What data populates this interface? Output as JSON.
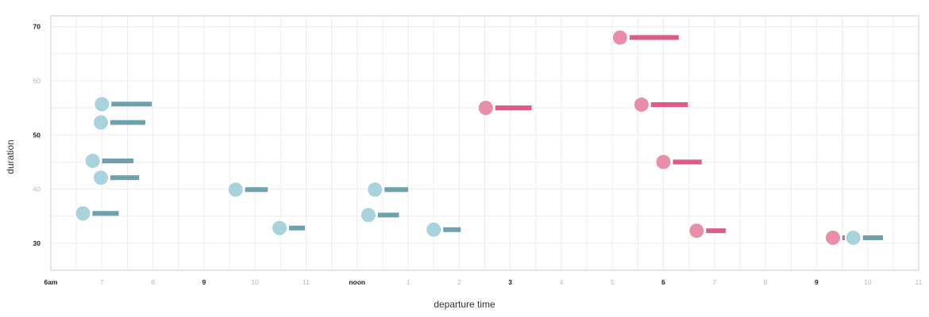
{
  "chart_data": {
    "type": "scatter",
    "xlabel": "departure time",
    "ylabel": "duration",
    "xlim": [
      6,
      23
    ],
    "ylim": [
      25,
      72
    ],
    "x_ticks": [
      {
        "value": 6,
        "label": "6am",
        "major": true
      },
      {
        "value": 7,
        "label": "7",
        "major": false
      },
      {
        "value": 8,
        "label": "8",
        "major": false
      },
      {
        "value": 9,
        "label": "9",
        "major": true
      },
      {
        "value": 10,
        "label": "10",
        "major": false
      },
      {
        "value": 11,
        "label": "11",
        "major": false
      },
      {
        "value": 12,
        "label": "noon",
        "major": true
      },
      {
        "value": 13,
        "label": "1",
        "major": false
      },
      {
        "value": 14,
        "label": "2",
        "major": false
      },
      {
        "value": 15,
        "label": "3",
        "major": true
      },
      {
        "value": 16,
        "label": "4",
        "major": false
      },
      {
        "value": 17,
        "label": "5",
        "major": false
      },
      {
        "value": 18,
        "label": "6",
        "major": true
      },
      {
        "value": 19,
        "label": "7",
        "major": false
      },
      {
        "value": 20,
        "label": "8",
        "major": false
      },
      {
        "value": 21,
        "label": "9",
        "major": true
      },
      {
        "value": 22,
        "label": "10",
        "major": false
      },
      {
        "value": 23,
        "label": "11",
        "major": false
      }
    ],
    "y_ticks": [
      {
        "value": 30,
        "label": "30",
        "major": true
      },
      {
        "value": 40,
        "label": "40",
        "major": false
      },
      {
        "value": 50,
        "label": "50",
        "major": true
      },
      {
        "value": 60,
        "label": "60",
        "major": false
      },
      {
        "value": 70,
        "label": "70",
        "major": true
      }
    ],
    "grid": true,
    "colors": {
      "blue_dot": "#a8d3dd",
      "blue_bar": "#6fa0ad",
      "pink_dot": "#e88ea8",
      "pink_bar": "#dc5d83"
    },
    "series": [
      {
        "color_key": "blue",
        "points": [
          {
            "x": 6.63,
            "y": 35.5,
            "arrival": 7.33
          },
          {
            "x": 6.82,
            "y": 45.2,
            "arrival": 7.62
          },
          {
            "x": 6.98,
            "y": 42.1,
            "arrival": 7.73
          },
          {
            "x": 6.98,
            "y": 52.3,
            "arrival": 7.85
          },
          {
            "x": 7.0,
            "y": 55.7,
            "arrival": 7.98
          },
          {
            "x": 9.62,
            "y": 39.9,
            "arrival": 10.25
          },
          {
            "x": 10.48,
            "y": 32.8,
            "arrival": 10.98
          },
          {
            "x": 12.22,
            "y": 35.2,
            "arrival": 12.82
          },
          {
            "x": 12.35,
            "y": 39.9,
            "arrival": 13.0
          },
          {
            "x": 13.5,
            "y": 32.5,
            "arrival": 14.03
          },
          {
            "x": 21.72,
            "y": 31.0,
            "arrival": 22.3
          }
        ]
      },
      {
        "color_key": "pink",
        "points": [
          {
            "x": 14.52,
            "y": 55.0,
            "arrival": 15.42
          },
          {
            "x": 17.15,
            "y": 68.0,
            "arrival": 18.3
          },
          {
            "x": 17.57,
            "y": 55.6,
            "arrival": 18.48
          },
          {
            "x": 18.0,
            "y": 45.0,
            "arrival": 18.75
          },
          {
            "x": 18.65,
            "y": 32.3,
            "arrival": 19.22
          },
          {
            "x": 21.32,
            "y": 31.0,
            "arrival": 21.78
          }
        ]
      }
    ]
  }
}
